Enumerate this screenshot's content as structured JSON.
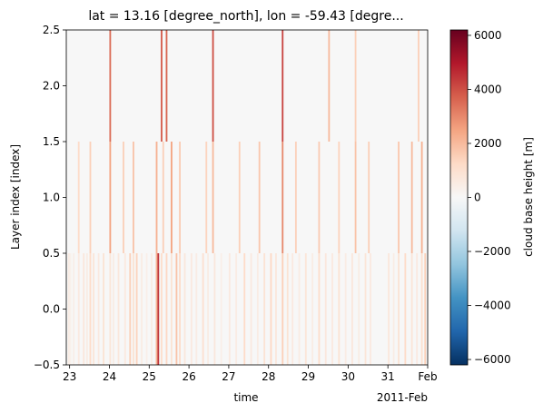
{
  "chart_data": {
    "type": "heatmap",
    "title": "lat = 13.16 [degree_north], lon = -59.43 [degre...",
    "xlabel": "time",
    "ylabel": "Layer index [index]",
    "x_ticks": [
      "23",
      "24",
      "25",
      "26",
      "27",
      "28",
      "29",
      "30",
      "31",
      "Feb"
    ],
    "x_offset_label": "2011-Feb",
    "x_range": [
      "2011-01-22T22:00",
      "2011-02-01T00:00"
    ],
    "y_ticks": [
      "−0.5",
      "0.0",
      "0.5",
      "1.0",
      "1.5",
      "2.0",
      "2.5"
    ],
    "ylim": [
      -0.5,
      2.5
    ],
    "layers": [
      0,
      1,
      2
    ],
    "colorbar": {
      "label": "cloud base height [m]",
      "colormap": "RdBu_r",
      "vmin": -6200,
      "vmax": 6200,
      "ticks": [
        "6000",
        "4000",
        "2000",
        "0",
        "−2000",
        "−4000",
        "−6000"
      ],
      "tick_values": [
        6000,
        4000,
        2000,
        0,
        -2000,
        -4000,
        -6000
      ]
    },
    "background_value": 0,
    "layer0_values_m": [
      [
        "2011-01-22T23:00",
        500
      ],
      [
        "2011-01-23T00:00",
        300
      ],
      [
        "2011-01-23T02:00",
        400
      ],
      [
        "2011-01-23T05:00",
        600
      ],
      [
        "2011-01-23T08:00",
        700
      ],
      [
        "2011-01-23T10:00",
        500
      ],
      [
        "2011-01-23T12:00",
        1200
      ],
      [
        "2011-01-23T14:00",
        800
      ],
      [
        "2011-01-23T17:00",
        600
      ],
      [
        "2011-01-23T20:00",
        900
      ],
      [
        "2011-01-24T00:00",
        800
      ],
      [
        "2011-01-24T02:00",
        500
      ],
      [
        "2011-01-24T05:00",
        700
      ],
      [
        "2011-01-24T09:00",
        600
      ],
      [
        "2011-01-24T12:00",
        1500
      ],
      [
        "2011-01-24T14:00",
        900
      ],
      [
        "2011-01-24T16:00",
        1400
      ],
      [
        "2011-01-24T19:00",
        500
      ],
      [
        "2011-01-24T22:00",
        400
      ],
      [
        "2011-01-25T01:00",
        500
      ],
      [
        "2011-01-25T04:00",
        2200
      ],
      [
        "2011-01-25T05:00",
        4500
      ],
      [
        "2011-01-25T07:00",
        1100
      ],
      [
        "2011-01-25T10:00",
        1300
      ],
      [
        "2011-01-25T13:00",
        900
      ],
      [
        "2011-01-25T16:00",
        1800
      ],
      [
        "2011-01-25T18:00",
        1200
      ],
      [
        "2011-01-25T21:00",
        700
      ],
      [
        "2011-01-26T01:00",
        600
      ],
      [
        "2011-01-26T04:00",
        500
      ],
      [
        "2011-01-26T08:00",
        1000
      ],
      [
        "2011-01-26T11:00",
        500
      ],
      [
        "2011-01-26T15:00",
        700
      ],
      [
        "2011-01-26T19:00",
        400
      ],
      [
        "2011-01-27T00:00",
        600
      ],
      [
        "2011-01-27T04:00",
        500
      ],
      [
        "2011-01-27T09:00",
        1200
      ],
      [
        "2011-01-27T13:00",
        600
      ],
      [
        "2011-01-27T17:00",
        500
      ],
      [
        "2011-01-27T21:00",
        900
      ],
      [
        "2011-01-28T01:00",
        1300
      ],
      [
        "2011-01-28T04:00",
        700
      ],
      [
        "2011-01-28T08:00",
        1500
      ],
      [
        "2011-01-28T11:00",
        900
      ],
      [
        "2011-01-28T14:00",
        600
      ],
      [
        "2011-01-28T18:00",
        500
      ],
      [
        "2011-01-28T22:00",
        800
      ],
      [
        "2011-01-29T02:00",
        500
      ],
      [
        "2011-01-29T06:00",
        1100
      ],
      [
        "2011-01-29T10:00",
        700
      ],
      [
        "2011-01-29T14:00",
        600
      ],
      [
        "2011-01-29T18:00",
        900
      ],
      [
        "2011-01-29T22:00",
        500
      ],
      [
        "2011-01-30T02:00",
        700
      ],
      [
        "2011-01-30T06:00",
        500
      ],
      [
        "2011-01-30T10:00",
        800
      ],
      [
        "2011-01-30T13:00",
        600
      ],
      [
        "2011-01-31T00:00",
        700
      ],
      [
        "2011-01-31T03:00",
        500
      ],
      [
        "2011-01-31T06:00",
        900
      ],
      [
        "2011-01-31T10:00",
        1200
      ],
      [
        "2011-01-31T14:00",
        800
      ],
      [
        "2011-01-31T17:00",
        600
      ],
      [
        "2011-01-31T20:00",
        1000
      ],
      [
        "2011-01-31T22:00",
        1500
      ]
    ],
    "layer1_values_m": [
      [
        "2011-01-23T05:00",
        1200
      ],
      [
        "2011-01-23T12:00",
        1500
      ],
      [
        "2011-01-24T00:00",
        2500
      ],
      [
        "2011-01-24T08:00",
        1500
      ],
      [
        "2011-01-24T14:00",
        1800
      ],
      [
        "2011-01-25T04:00",
        2200
      ],
      [
        "2011-01-25T08:00",
        1500
      ],
      [
        "2011-01-25T13:00",
        2500
      ],
      [
        "2011-01-25T18:00",
        1600
      ],
      [
        "2011-01-26T10:00",
        1400
      ],
      [
        "2011-01-26T14:00",
        2000
      ],
      [
        "2011-01-27T06:00",
        1500
      ],
      [
        "2011-01-27T18:00",
        1700
      ],
      [
        "2011-01-28T08:00",
        3000
      ],
      [
        "2011-01-28T16:00",
        1500
      ],
      [
        "2011-01-29T06:00",
        1600
      ],
      [
        "2011-01-29T18:00",
        1400
      ],
      [
        "2011-01-30T04:00",
        1800
      ],
      [
        "2011-01-30T12:00",
        1500
      ],
      [
        "2011-01-31T06:00",
        1700
      ],
      [
        "2011-01-31T14:00",
        2000
      ],
      [
        "2011-01-31T20:00",
        2200
      ]
    ],
    "layer2_values_m": [
      [
        "2011-01-24T00:00",
        3500
      ],
      [
        "2011-01-25T07:00",
        3800
      ],
      [
        "2011-01-25T10:00",
        3600
      ],
      [
        "2011-01-26T14:00",
        4000
      ],
      [
        "2011-01-28T08:00",
        4200
      ],
      [
        "2011-01-29T12:00",
        2000
      ],
      [
        "2011-01-30T04:00",
        1500
      ],
      [
        "2011-01-31T18:00",
        1500
      ]
    ]
  }
}
